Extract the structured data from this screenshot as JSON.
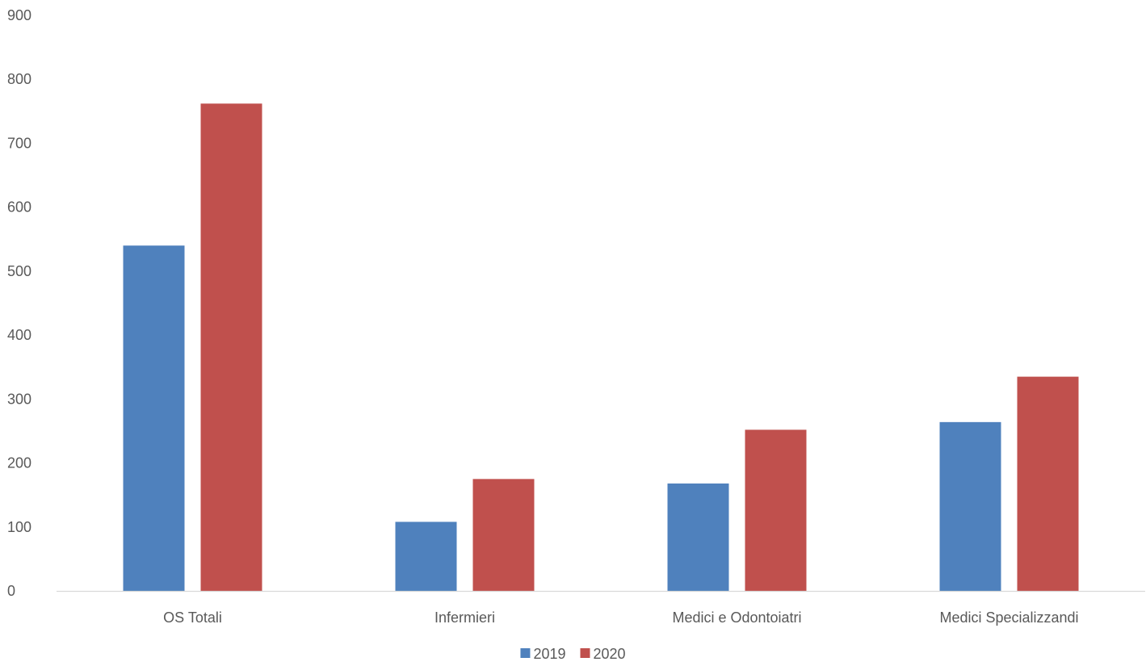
{
  "chart_data": {
    "type": "bar",
    "categories": [
      "OS Totali",
      "Infermieri",
      "Medici e Odontoiatri",
      "Medici Specializzandi"
    ],
    "series": [
      {
        "name": "2019",
        "color": "#4f81bd",
        "values": [
          540,
          108,
          168,
          264
        ]
      },
      {
        "name": "2020",
        "color": "#c0504d",
        "values": [
          762,
          175,
          252,
          335
        ]
      }
    ],
    "title": "",
    "xlabel": "",
    "ylabel": "",
    "ylim": [
      0,
      900
    ],
    "yticks": [
      0,
      100,
      200,
      300,
      400,
      500,
      600,
      700,
      800,
      900
    ],
    "grid": false,
    "legend": "bottom-center"
  }
}
